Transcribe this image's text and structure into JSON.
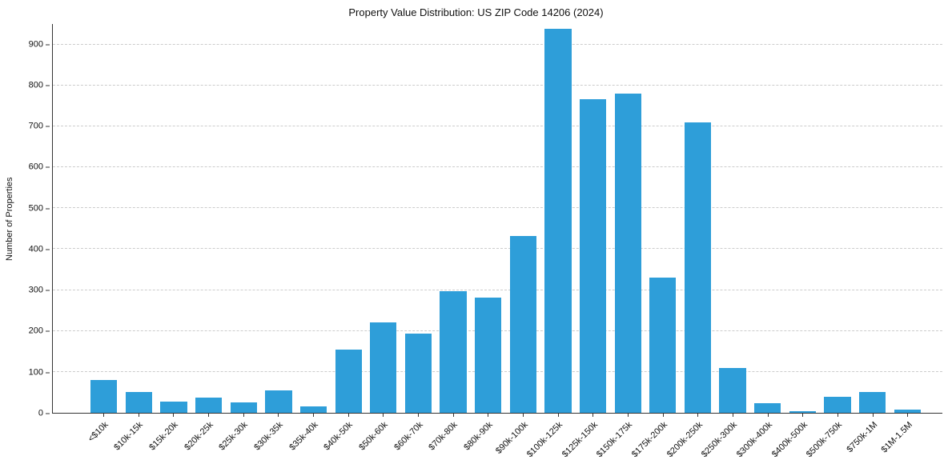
{
  "colors": {
    "bar": "#2e9ed9",
    "grid": "#cccccc",
    "axis": "#333333"
  },
  "chart_data": {
    "type": "bar",
    "title": "Property Value Distribution: US ZIP Code 14206 (2024)",
    "xlabel": "",
    "ylabel": "Number of Properties",
    "ylim": [
      0,
      950
    ],
    "yticks": [
      0,
      100,
      200,
      300,
      400,
      500,
      600,
      700,
      800,
      900
    ],
    "grid": "horizontal-dashed",
    "legend": "none",
    "categories": [
      "<$10k",
      "$10k-15k",
      "$15k-20k",
      "$20k-25k",
      "$25k-30k",
      "$30k-35k",
      "$35k-40k",
      "$40k-50k",
      "$50k-60k",
      "$60k-70k",
      "$70k-80k",
      "$80k-90k",
      "$90k-100k",
      "$100k-125k",
      "$125k-150k",
      "$150k-175k",
      "$175k-200k",
      "$200k-250k",
      "$250k-300k",
      "$300k-400k",
      "$400k-500k",
      "$500k-750k",
      "$750k-1M",
      "$1M-1.5M"
    ],
    "values": [
      80,
      50,
      28,
      38,
      26,
      55,
      16,
      155,
      220,
      193,
      298,
      282,
      432,
      938,
      767,
      779,
      330,
      710,
      110,
      24,
      3,
      40,
      50,
      8
    ]
  }
}
